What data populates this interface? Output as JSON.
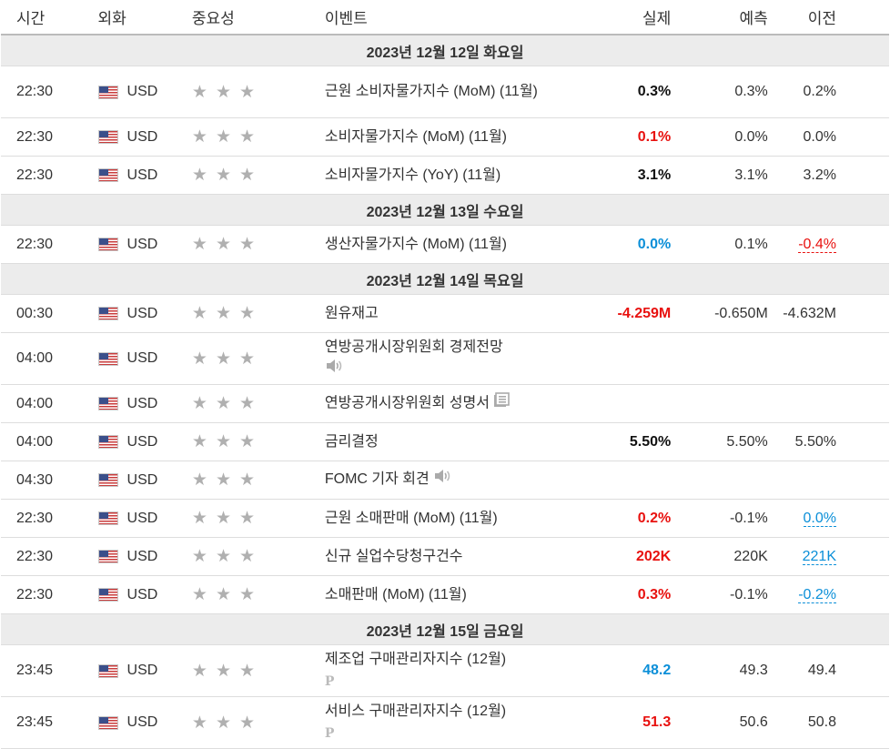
{
  "headers": {
    "time": "시간",
    "currency": "외화",
    "importance": "중요성",
    "event": "이벤트",
    "actual": "실제",
    "forecast": "예측",
    "previous": "이전"
  },
  "days": [
    {
      "label": "2023년 12월 12일 화요일",
      "rows": [
        {
          "time": "22:30",
          "currency": "USD",
          "event": "근원 소비자물가지수 (MoM) (11월)",
          "actual": "0.3%",
          "actual_color": "black",
          "forecast": "0.3%",
          "previous": "0.2%",
          "previous_color": "normal",
          "icon": "",
          "tall": true
        },
        {
          "time": "22:30",
          "currency": "USD",
          "event": "소비자물가지수 (MoM) (11월)",
          "actual": "0.1%",
          "actual_color": "red",
          "forecast": "0.0%",
          "previous": "0.0%",
          "previous_color": "normal",
          "icon": ""
        },
        {
          "time": "22:30",
          "currency": "USD",
          "event": "소비자물가지수 (YoY) (11월)",
          "actual": "3.1%",
          "actual_color": "black",
          "forecast": "3.1%",
          "previous": "3.2%",
          "previous_color": "normal",
          "icon": ""
        }
      ]
    },
    {
      "label": "2023년 12월 13일 수요일",
      "rows": [
        {
          "time": "22:30",
          "currency": "USD",
          "event": "생산자물가지수 (MoM) (11월)",
          "actual": "0.0%",
          "actual_color": "blue",
          "forecast": "0.1%",
          "previous": "-0.4%",
          "previous_color": "red",
          "icon": ""
        }
      ]
    },
    {
      "label": "2023년 12월 14일 목요일",
      "rows": [
        {
          "time": "00:30",
          "currency": "USD",
          "event": "원유재고",
          "actual": "-4.259M",
          "actual_color": "red",
          "forecast": "-0.650M",
          "previous": "-4.632M",
          "previous_color": "normal",
          "icon": ""
        },
        {
          "time": "04:00",
          "currency": "USD",
          "event": "연방공개시장위원회 경제전망",
          "actual": "",
          "actual_color": "black",
          "forecast": "",
          "previous": "",
          "previous_color": "normal",
          "icon": "speaker",
          "tall": true
        },
        {
          "time": "04:00",
          "currency": "USD",
          "event": "연방공개시장위원회 성명서",
          "actual": "",
          "actual_color": "black",
          "forecast": "",
          "previous": "",
          "previous_color": "normal",
          "icon": "doc"
        },
        {
          "time": "04:00",
          "currency": "USD",
          "event": "금리결정",
          "actual": "5.50%",
          "actual_color": "black",
          "forecast": "5.50%",
          "previous": "5.50%",
          "previous_color": "normal",
          "icon": ""
        },
        {
          "time": "04:30",
          "currency": "USD",
          "event": "FOMC 기자 회견",
          "actual": "",
          "actual_color": "black",
          "forecast": "",
          "previous": "",
          "previous_color": "normal",
          "icon": "speaker-inline"
        },
        {
          "time": "22:30",
          "currency": "USD",
          "event": "근원 소매판매 (MoM) (11월)",
          "actual": "0.2%",
          "actual_color": "red",
          "forecast": "-0.1%",
          "previous": "0.0%",
          "previous_color": "blue",
          "icon": ""
        },
        {
          "time": "22:30",
          "currency": "USD",
          "event": "신규 실업수당청구건수",
          "actual": "202K",
          "actual_color": "red",
          "forecast": "220K",
          "previous": "221K",
          "previous_color": "blue",
          "icon": ""
        },
        {
          "time": "22:30",
          "currency": "USD",
          "event": "소매판매 (MoM) (11월)",
          "actual": "0.3%",
          "actual_color": "red",
          "forecast": "-0.1%",
          "previous": "-0.2%",
          "previous_color": "blue",
          "icon": ""
        }
      ]
    },
    {
      "label": "2023년 12월 15일 금요일",
      "rows": [
        {
          "time": "23:45",
          "currency": "USD",
          "event": "제조업 구매관리자지수 (12월)",
          "actual": "48.2",
          "actual_color": "blue",
          "forecast": "49.3",
          "previous": "49.4",
          "previous_color": "normal",
          "icon": "p",
          "tall": true
        },
        {
          "time": "23:45",
          "currency": "USD",
          "event": "서비스 구매관리자지수 (12월)",
          "actual": "51.3",
          "actual_color": "red",
          "forecast": "50.6",
          "previous": "50.8",
          "previous_color": "normal",
          "icon": "p",
          "tall": true
        }
      ]
    }
  ],
  "importance_stars": 3,
  "colors": {
    "red": "#e8110f",
    "blue": "#0b8fd8",
    "black": "#111111",
    "star": "#b0b0b0",
    "day_bg": "#ececec"
  }
}
